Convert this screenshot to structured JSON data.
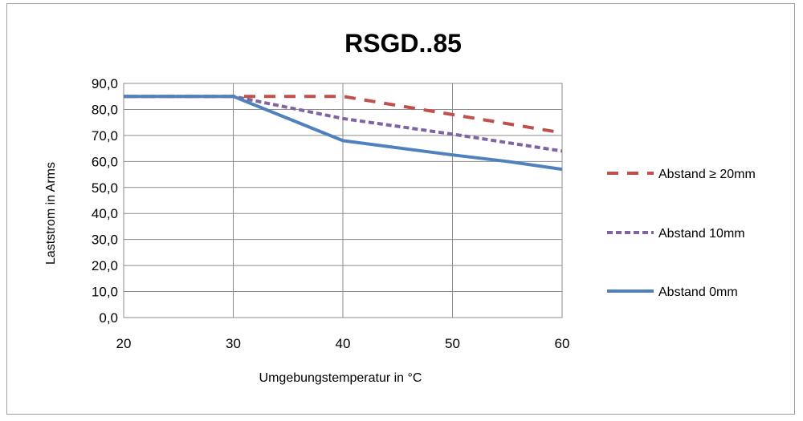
{
  "chart_data": {
    "type": "line",
    "title": "RSGD..85",
    "xlabel": "Umgebungstemperatur in °C",
    "ylabel": "Laststrom in Arms",
    "xlim": [
      20,
      60
    ],
    "ylim": [
      0,
      90
    ],
    "x_ticks": [
      "20",
      "30",
      "40",
      "50",
      "60"
    ],
    "y_ticks": [
      "0,0",
      "10,0",
      "20,0",
      "30,0",
      "40,0",
      "50,0",
      "60,0",
      "70,0",
      "80,0",
      "90,0"
    ],
    "grid": true,
    "legend_position": "right",
    "series": [
      {
        "name": "Abstand ≥ 20mm",
        "color": "#c0504d",
        "style": "dashed",
        "x": [
          20,
          30,
          40,
          50,
          60
        ],
        "values": [
          85,
          85,
          85,
          78,
          71
        ]
      },
      {
        "name": "Abstand 10mm",
        "color": "#8064a2",
        "style": "short-dashed",
        "x": [
          20,
          30,
          40,
          50,
          60
        ],
        "values": [
          85,
          85,
          76.5,
          70.5,
          64
        ]
      },
      {
        "name": "Abstand 0mm",
        "color": "#4f81bd",
        "style": "solid",
        "x": [
          20,
          30,
          40,
          50,
          55,
          60
        ],
        "values": [
          85,
          85,
          68,
          62.5,
          60,
          57
        ]
      }
    ]
  }
}
